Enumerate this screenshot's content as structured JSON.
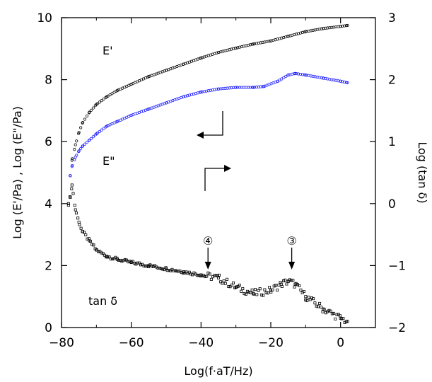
{
  "chart_data": {
    "type": "scatter",
    "xlabel": "Log(f·aT/Hz)",
    "ylabel_left": "Log (E'/Pa) , Log (E\"/Pa)",
    "ylabel_right": "Log (tan δ)",
    "xlim": [
      -80,
      10
    ],
    "ylim_left": [
      0,
      10
    ],
    "ylim_right": [
      -2,
      3
    ],
    "x_ticks": [
      -80,
      -60,
      -40,
      -20,
      0
    ],
    "y_ticks_left": [
      0,
      2,
      4,
      6,
      8,
      10
    ],
    "y_ticks_right": [
      -2,
      -1,
      0,
      1,
      2,
      3
    ],
    "grid": false,
    "series": [
      {
        "name": "E'",
        "axis": "left",
        "color": "#000000",
        "marker": "open-circle",
        "x": [
          -77.5,
          -77,
          -76,
          -75,
          -74,
          -72,
          -70,
          -67,
          -64,
          -60,
          -55,
          -50,
          -45,
          -40,
          -35,
          -30,
          -25,
          -20,
          -15,
          -10,
          -5,
          0,
          2
        ],
        "y": [
          4.9,
          5.4,
          5.9,
          6.3,
          6.6,
          6.95,
          7.2,
          7.45,
          7.65,
          7.85,
          8.1,
          8.3,
          8.5,
          8.7,
          8.88,
          9.02,
          9.15,
          9.25,
          9.4,
          9.55,
          9.65,
          9.72,
          9.75
        ]
      },
      {
        "name": "E\"",
        "axis": "left",
        "color": "#1a1aff",
        "marker": "open-circle",
        "x": [
          -77.5,
          -77,
          -76,
          -75,
          -74,
          -72,
          -70,
          -67,
          -64,
          -60,
          -55,
          -50,
          -45,
          -40,
          -35,
          -30,
          -25,
          -22,
          -18,
          -15,
          -13,
          -10,
          -5,
          0,
          2
        ],
        "y": [
          4.9,
          5.2,
          5.5,
          5.7,
          5.85,
          6.05,
          6.25,
          6.5,
          6.65,
          6.85,
          7.05,
          7.25,
          7.45,
          7.6,
          7.7,
          7.75,
          7.75,
          7.78,
          7.95,
          8.15,
          8.2,
          8.15,
          8.05,
          7.95,
          7.9
        ]
      },
      {
        "name": "tan δ",
        "axis": "right",
        "color": "#000000",
        "marker": "open-square",
        "x": [
          -78,
          -77.5,
          -77,
          -76,
          -75,
          -74,
          -72,
          -70,
          -67,
          -64,
          -60,
          -55,
          -50,
          -45,
          -40,
          -35,
          -30,
          -25,
          -20,
          -17,
          -15,
          -13,
          -10,
          -5,
          0,
          2
        ],
        "y": [
          0.0,
          0.1,
          0.3,
          -0.1,
          -0.3,
          -0.45,
          -0.6,
          -0.75,
          -0.85,
          -0.9,
          -0.95,
          -1.0,
          -1.05,
          -1.1,
          -1.15,
          -1.2,
          -1.35,
          -1.45,
          -1.4,
          -1.3,
          -1.25,
          -1.3,
          -1.5,
          -1.7,
          -1.85,
          -1.9
        ]
      }
    ],
    "annotations": {
      "e_prime_label": "E'",
      "e_double_prime_label": "E\"",
      "tan_delta_label": "tan δ",
      "marker_4": "④",
      "marker_3": "③",
      "marker_4_x": -38,
      "marker_3_x": -14
    }
  }
}
